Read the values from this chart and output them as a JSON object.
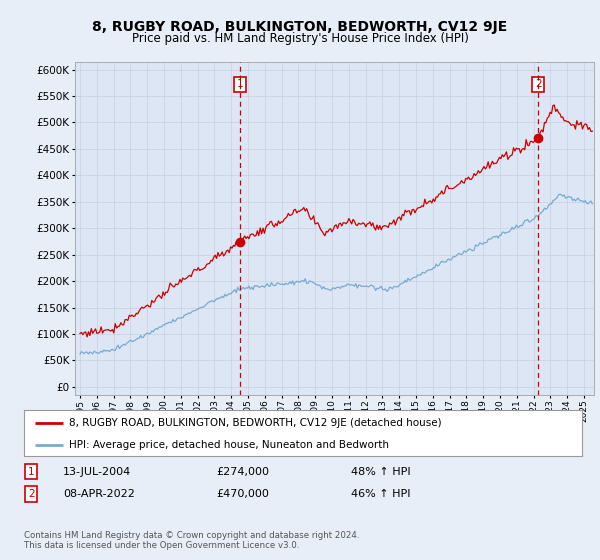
{
  "title": "8, RUGBY ROAD, BULKINGTON, BEDWORTH, CV12 9JE",
  "subtitle": "Price paid vs. HM Land Registry's House Price Index (HPI)",
  "background_color": "#e8eef7",
  "plot_bg_color": "#dce6f5",
  "legend_label_red": "8, RUGBY ROAD, BULKINGTON, BEDWORTH, CV12 9JE (detached house)",
  "legend_label_blue": "HPI: Average price, detached house, Nuneaton and Bedworth",
  "transaction1_date": "13-JUL-2004",
  "transaction1_price": "£274,000",
  "transaction1_hpi": "48% ↑ HPI",
  "transaction2_date": "08-APR-2022",
  "transaction2_price": "£470,000",
  "transaction2_hpi": "46% ↑ HPI",
  "footer": "Contains HM Land Registry data © Crown copyright and database right 2024.\nThis data is licensed under the Open Government Licence v3.0.",
  "yticks": [
    0,
    50000,
    100000,
    150000,
    200000,
    250000,
    300000,
    350000,
    400000,
    450000,
    500000,
    550000,
    600000
  ],
  "ylim": [
    -15000,
    615000
  ],
  "marker1_x": 2004.53,
  "marker1_y": 274000,
  "marker2_x": 2022.27,
  "marker2_y": 470000,
  "red_color": "#cc0000",
  "blue_color": "#7aaad0",
  "grid_color": "#c8d0e0",
  "xlim_left": 1994.7,
  "xlim_right": 2025.6
}
